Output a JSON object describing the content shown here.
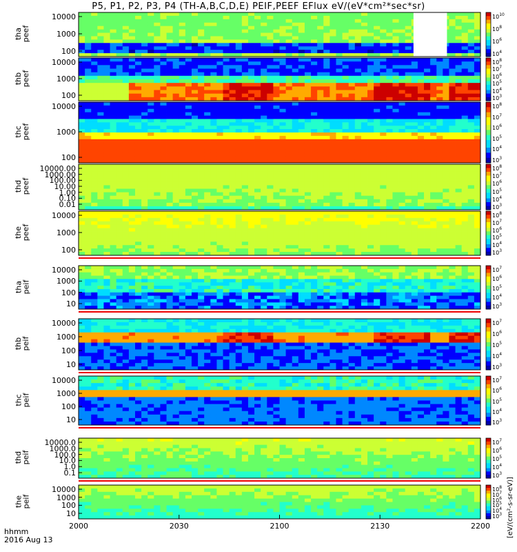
{
  "title": "P5, P1, P2, P3, P4 (TH-A,B,C,D,E) PEIF,PEEF EFlux eV/(eV*cm²*sec*sr)",
  "footer": {
    "line1": "hhmm",
    "line2": "2016 Aug 13"
  },
  "colorbar_units_label": "[eV/(cm²-s-sr-eV)]",
  "colors": {
    "spectrum": [
      "#0000aa",
      "#0000ff",
      "#0088ff",
      "#00ddff",
      "#22ffcc",
      "#66ff66",
      "#ccff33",
      "#ffff00",
      "#ffaa00",
      "#ff4400",
      "#cc0000"
    ],
    "gap_fill": "#ffffff",
    "separator_red": "#ee0000"
  },
  "chart_data": {
    "type": "heatmap",
    "x_tick_labels": [
      "2000",
      "2030",
      "2100",
      "2130",
      "2200"
    ],
    "x_range_hhmm": [
      "2000",
      "2200"
    ],
    "panels": [
      {
        "id": "tha_peef",
        "label": "tha\npeef",
        "y_ticks": [
          "10000",
          "1000",
          "100"
        ],
        "scale": "log",
        "cb_ticks": [
          "10",
          "8",
          "6",
          "4"
        ],
        "cb_base": "10",
        "pattern": "low_blue_band",
        "data_gap_hhmm": [
          "2140",
          "2150"
        ]
      },
      {
        "id": "thb_peef",
        "label": "thb\npeef",
        "y_ticks": [
          "10000",
          "1000",
          "100"
        ],
        "scale": "log",
        "cb_ticks": [
          "8",
          "7",
          "6",
          "5",
          "4",
          "3"
        ],
        "cb_base": "10",
        "pattern": "hot_low_energy"
      },
      {
        "id": "thc_peef",
        "label": "thc\npeef",
        "y_ticks": [
          "10000",
          "1000",
          "100"
        ],
        "scale": "log",
        "cb_ticks": [
          "8",
          "7",
          "6",
          "5",
          "4",
          "3"
        ],
        "cb_base": "10",
        "pattern": "hot_low_energy_c"
      },
      {
        "id": "thd_peef",
        "label": "thd\npeef",
        "y_ticks": [
          "10000.00",
          "1000.00",
          "100.00",
          "10.00",
          "1.00",
          "0.10",
          "0.01"
        ],
        "scale": "log",
        "cb_ticks": [
          "8",
          "7",
          "6",
          "5",
          "4",
          "3"
        ],
        "cb_base": "10",
        "pattern": "uniform_green"
      },
      {
        "id": "the_peef",
        "label": "the\npeef",
        "y_ticks": [
          "10000",
          "1000",
          "100"
        ],
        "scale": "log",
        "cb_ticks": [
          "8",
          "7",
          "6",
          "5",
          "4",
          "3"
        ],
        "cb_base": "10",
        "pattern": "yellow_green"
      },
      {
        "id": "tha_peif",
        "label": "tha\npeif",
        "y_ticks": [
          "10000",
          "1000",
          "100",
          "10"
        ],
        "scale": "log",
        "cb_ticks": [
          "7",
          "6",
          "5",
          "4",
          "3"
        ],
        "cb_base": "10",
        "pattern": "ion_blue"
      },
      {
        "id": "thb_peif",
        "label": "thb\npeif",
        "y_ticks": [
          "10000",
          "1000",
          "100",
          "10"
        ],
        "scale": "log",
        "cb_ticks": [
          "7",
          "6",
          "5",
          "4",
          "3"
        ],
        "cb_base": "10",
        "pattern": "ion_band_b"
      },
      {
        "id": "thc_peif",
        "label": "thc\npeif",
        "y_ticks": [
          "10000",
          "1000",
          "100",
          "10"
        ],
        "scale": "log",
        "cb_ticks": [
          "7",
          "6",
          "5",
          "4",
          "3"
        ],
        "cb_base": "10",
        "pattern": "ion_band_c"
      },
      {
        "id": "thd_peif",
        "label": "thd\npeif",
        "y_ticks": [
          "10000.0",
          "1000.0",
          "100.0",
          "10.0",
          "1.0",
          "0.1"
        ],
        "scale": "log",
        "cb_ticks": [
          "7",
          "6",
          "5",
          "4",
          "3"
        ],
        "cb_base": "10",
        "pattern": "ion_green"
      },
      {
        "id": "the_peif",
        "label": "the\npeif",
        "y_ticks": [
          "10000",
          "1000",
          "100",
          "10"
        ],
        "scale": "log",
        "cb_ticks": [
          "8",
          "7",
          "6",
          "5",
          "4",
          "3"
        ],
        "cb_base": "10",
        "pattern": "ion_green_e"
      }
    ]
  }
}
